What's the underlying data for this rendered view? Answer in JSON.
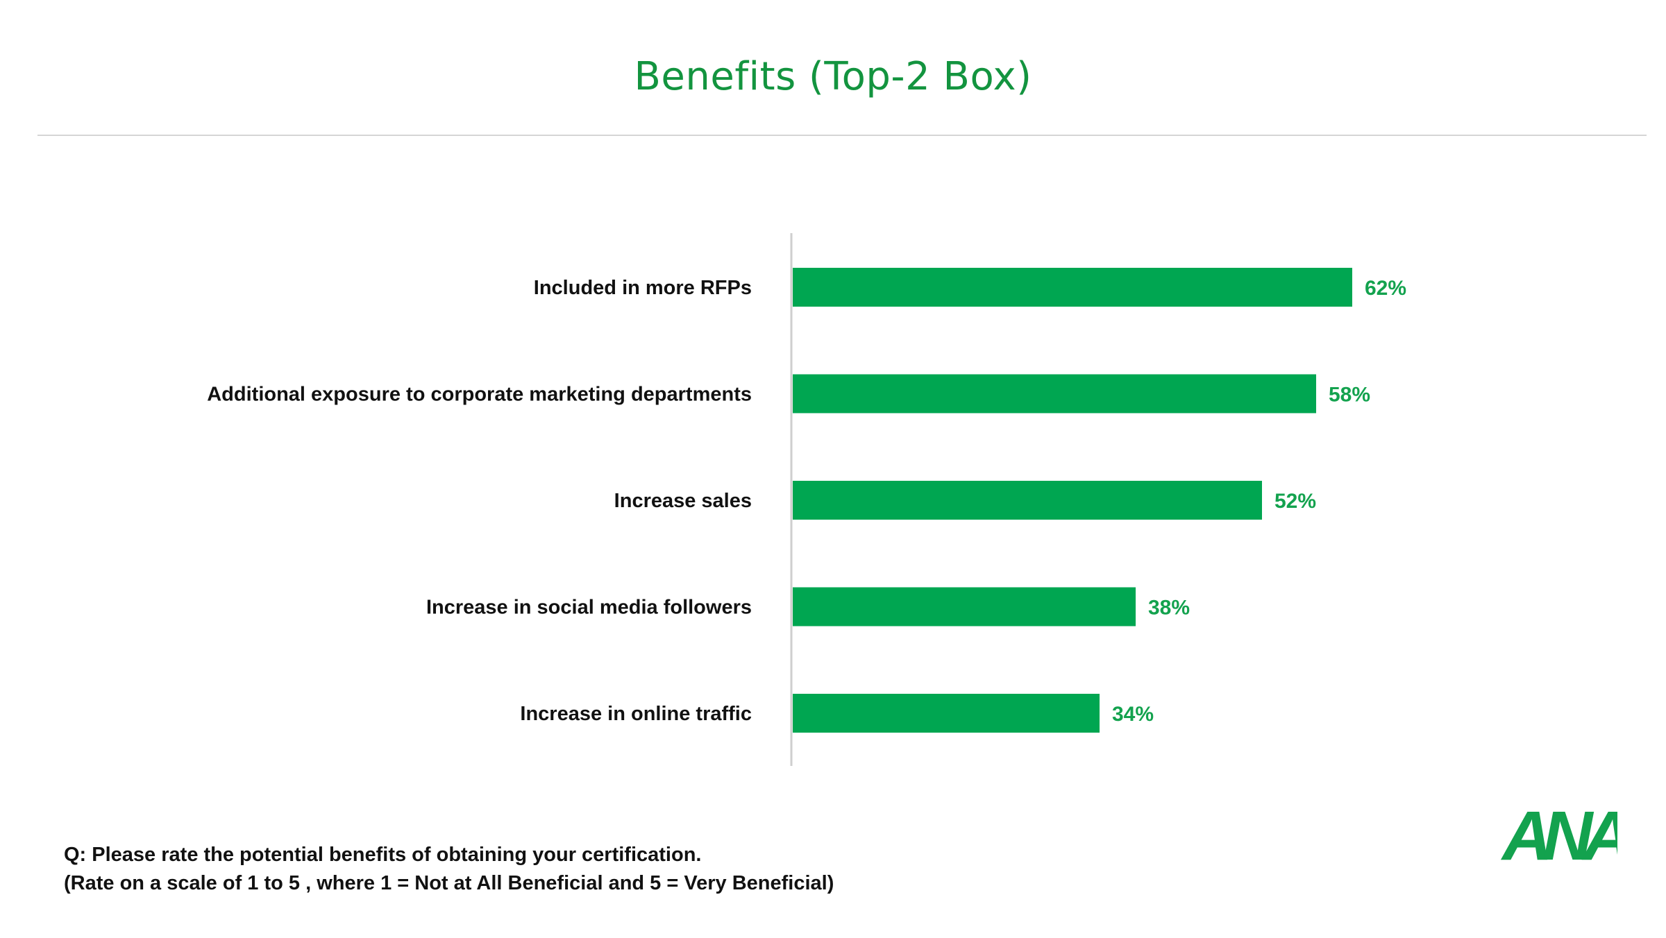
{
  "page": {
    "title": "Benefits (Top-2 Box)",
    "footnote_line1": "Q: Please rate the potential benefits of obtaining your certification.",
    "footnote_line2": "(Rate on a scale   of 1 to 5 , where 1 = Not at All Beneficial and 5 = Very Beneficial)"
  },
  "logo": {
    "text": "ANA",
    "color": "#13a24e"
  },
  "colors": {
    "bar": "#00a651",
    "title": "#13943f",
    "value_label": "#13a24e"
  },
  "chart_data": {
    "type": "bar",
    "orientation": "horizontal",
    "title": "Benefits (Top-2 Box)",
    "categories": [
      "Included in more RFPs",
      "Additional exposure to corporate marketing departments",
      "Increase sales",
      "Increase in social media followers",
      "Increase in online traffic"
    ],
    "values": [
      62,
      58,
      52,
      38,
      34
    ],
    "value_labels": [
      "62%",
      "58%",
      "52%",
      "38%",
      "34%"
    ],
    "unit": "%",
    "xlim": [
      0,
      100
    ],
    "xlabel": "",
    "ylabel": "",
    "grid": false,
    "legend": "none"
  }
}
